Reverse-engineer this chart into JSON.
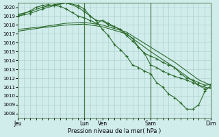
{
  "bg_color": "#d0eceb",
  "grid_color": "#a8ccca",
  "line_color": "#2d6b2d",
  "marker_color": "#2d6b2d",
  "xlabel_text": "Pression niveau de la mer( hPa )",
  "ylim": [
    1007.5,
    1020.5
  ],
  "yticks": [
    1008,
    1009,
    1010,
    1011,
    1012,
    1013,
    1014,
    1015,
    1016,
    1017,
    1018,
    1019,
    1020
  ],
  "xlim": [
    0,
    96
  ],
  "vline_positions": [
    33,
    66
  ],
  "xtick_positions": [
    0,
    33,
    42,
    66,
    96
  ],
  "xtick_labels": [
    "Jeu",
    "Lun",
    "Ven",
    "Sam",
    "Dim"
  ],
  "series": [
    {
      "x": [
        0,
        3,
        6,
        9,
        12,
        15,
        18,
        21,
        24,
        27,
        30,
        33,
        36,
        39,
        42,
        45,
        48,
        51,
        54,
        57,
        60,
        63,
        66,
        69,
        72,
        75,
        78,
        81,
        84,
        87,
        90,
        93,
        96
      ],
      "y": [
        1019.0,
        1019.3,
        1019.6,
        1020.0,
        1020.2,
        1020.3,
        1020.2,
        1020.1,
        1019.8,
        1019.4,
        1019.0,
        1018.8,
        1018.5,
        1018.2,
        1018.5,
        1018.0,
        1017.8,
        1017.5,
        1017.0,
        1016.5,
        1015.5,
        1014.8,
        1014.5,
        1014.2,
        1013.8,
        1013.5,
        1013.2,
        1012.5,
        1012.0,
        1011.8,
        1011.5,
        1011.2,
        1011.3
      ],
      "marker": true
    },
    {
      "x": [
        0,
        6,
        12,
        18,
        24,
        30,
        33,
        36,
        39,
        42,
        45,
        48,
        51,
        54,
        57,
        60,
        63,
        66,
        69,
        72,
        75,
        78,
        81,
        84,
        87,
        90,
        93,
        96
      ],
      "y": [
        1019.2,
        1019.5,
        1020.0,
        1020.3,
        1020.5,
        1020.2,
        1019.8,
        1019.0,
        1018.5,
        1018.5,
        1018.2,
        1017.8,
        1017.5,
        1016.8,
        1016.2,
        1015.5,
        1014.8,
        1013.5,
        1013.2,
        1012.8,
        1012.5,
        1012.2,
        1012.0,
        1011.8,
        1011.5,
        1011.2,
        1010.8,
        1011.0
      ],
      "marker": true
    },
    {
      "x": [
        0,
        12,
        24,
        33,
        42,
        54,
        66,
        78,
        90,
        96
      ],
      "y": [
        1017.5,
        1017.8,
        1018.2,
        1018.3,
        1018.0,
        1017.2,
        1015.5,
        1013.8,
        1011.8,
        1011.2
      ],
      "marker": false
    },
    {
      "x": [
        0,
        12,
        24,
        33,
        42,
        54,
        66,
        78,
        90,
        96
      ],
      "y": [
        1017.3,
        1017.7,
        1018.0,
        1018.1,
        1017.8,
        1017.0,
        1015.0,
        1013.2,
        1011.2,
        1010.8
      ],
      "marker": false
    },
    {
      "x": [
        0,
        6,
        12,
        18,
        24,
        30,
        33,
        36,
        39,
        42,
        45,
        48,
        51,
        54,
        57,
        60,
        63,
        66,
        69,
        72,
        75,
        78,
        81,
        84,
        87,
        90,
        93,
        96
      ],
      "y": [
        1019.0,
        1019.3,
        1019.8,
        1020.2,
        1020.5,
        1020.0,
        1019.5,
        1019.0,
        1018.5,
        1017.5,
        1016.8,
        1015.8,
        1015.2,
        1014.5,
        1013.5,
        1013.2,
        1012.8,
        1012.5,
        1011.5,
        1011.0,
        1010.2,
        1009.8,
        1009.2,
        1008.5,
        1008.5,
        1009.0,
        1010.5,
        1011.2
      ],
      "marker": true
    }
  ]
}
